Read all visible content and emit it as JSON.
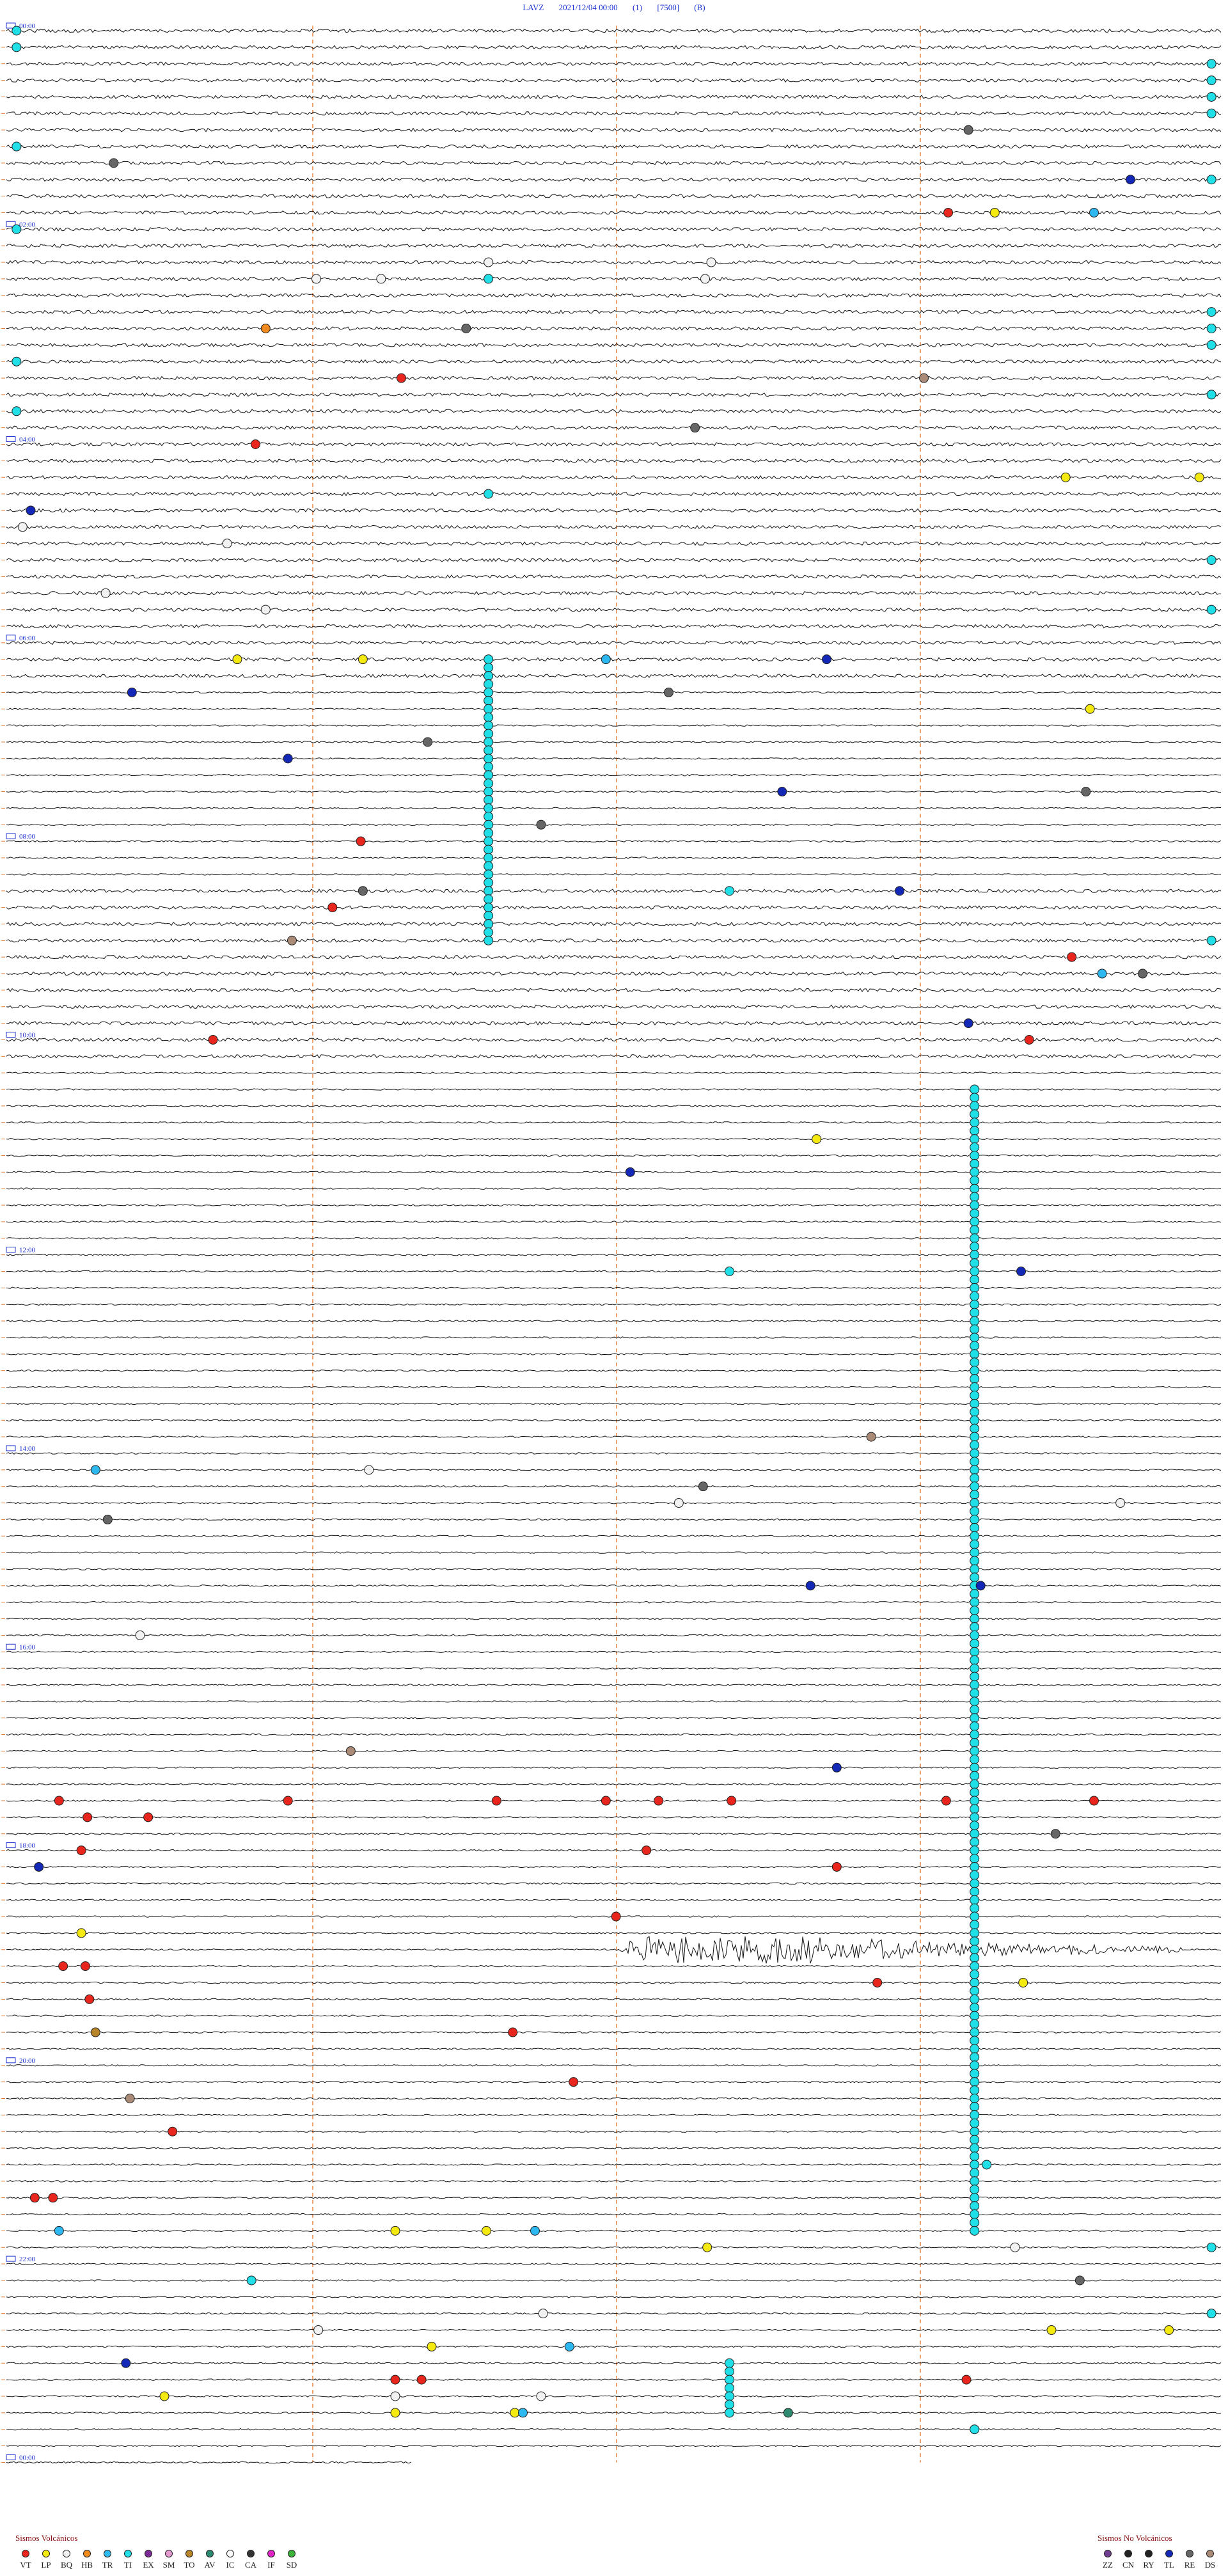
{
  "header": {
    "station": "LAVZ",
    "datetime": "2021/12/04 00:00",
    "component": "(1)",
    "gain": "[7500]",
    "flag": "(B)"
  },
  "chart_data": {
    "type": "helicorder",
    "lines_per_hour": 4,
    "hour_labels": [
      "00:00",
      "02:00",
      "04:00",
      "06:00",
      "08:00",
      "10:00",
      "12:00",
      "14:00",
      "16:00",
      "18:00",
      "20:00",
      "22:00",
      "00:00"
    ],
    "label_color": "#1a2fd0",
    "trace_color": "#111111",
    "minute_markers_color": "#e07a33",
    "event_types": {
      "VT": "#e8261e",
      "LP": "#f5ea10",
      "BQ": "#f2f2f2",
      "HB": "#f08a1e",
      "TR": "#2eb8f0",
      "TI": "#21dfe6",
      "EX": "#7b2a93",
      "SM": "#e59ad2",
      "TO": "#b9852b",
      "AV": "#2d8a70",
      "IC": "#ffffff",
      "CA": "#333333",
      "IF": "#e025c8",
      "SD": "#3bb23b",
      "ZZ": "#6e3d8f",
      "CN": "#222222",
      "RY": "#222222",
      "TL": "#1428b8",
      "RE": "#666666",
      "DS": "#a98b78"
    },
    "events": [
      {
        "type": "TI",
        "line": 0,
        "minute": 0.5
      },
      {
        "type": "TI",
        "line": 1,
        "minute": 0.5
      },
      {
        "type": "TI",
        "line": 2,
        "minute": 59.5
      },
      {
        "type": "TI",
        "line": 3,
        "minute": 59.5
      },
      {
        "type": "TI",
        "line": 4,
        "minute": 59.5
      },
      {
        "type": "TI",
        "line": 5,
        "minute": 59.5
      },
      {
        "type": "RE",
        "line": 6,
        "minute": 47.5
      },
      {
        "type": "TI",
        "line": 7,
        "minute": 0.5
      },
      {
        "type": "RE",
        "line": 8,
        "minute": 5.3
      },
      {
        "type": "TL",
        "line": 9,
        "minute": 55.5
      },
      {
        "type": "TI",
        "line": 9,
        "minute": 59.5
      },
      {
        "type": "VT",
        "line": 11,
        "minute": 46.5
      },
      {
        "type": "LP",
        "line": 11,
        "minute": 48.8
      },
      {
        "type": "TR",
        "line": 11,
        "minute": 53.7
      },
      {
        "type": "TI",
        "line": 12,
        "minute": 0.5
      },
      {
        "type": "BQ",
        "line": 14,
        "minute": 23.8
      },
      {
        "type": "BQ",
        "line": 14,
        "minute": 34.8
      },
      {
        "type": "TI",
        "line": 15,
        "minute": 23.8
      },
      {
        "type": "BQ",
        "line": 15,
        "minute": 15.3
      },
      {
        "type": "BQ",
        "line": 15,
        "minute": 18.5
      },
      {
        "type": "BQ",
        "line": 15,
        "minute": 34.5
      },
      {
        "type": "TI",
        "line": 17,
        "minute": 59.5
      },
      {
        "type": "TI",
        "line": 18,
        "minute": 59.5
      },
      {
        "type": "HB",
        "line": 18,
        "minute": 12.8
      },
      {
        "type": "RE",
        "line": 18,
        "minute": 22.7
      },
      {
        "type": "TI",
        "line": 19,
        "minute": 59.5
      },
      {
        "type": "TI",
        "line": 20,
        "minute": 0.5
      },
      {
        "type": "VT",
        "line": 21,
        "minute": 19.5
      },
      {
        "type": "DS",
        "line": 21,
        "minute": 45.3
      },
      {
        "type": "TI",
        "line": 22,
        "minute": 59.5
      },
      {
        "type": "TI",
        "line": 23,
        "minute": 0.5
      },
      {
        "type": "RE",
        "line": 24,
        "minute": 34.0
      },
      {
        "type": "VT",
        "line": 25,
        "minute": 12.3
      },
      {
        "type": "LP",
        "line": 27,
        "minute": 52.3
      },
      {
        "type": "LP",
        "line": 27,
        "minute": 58.9
      },
      {
        "type": "TI",
        "line": 28,
        "minute": 23.8
      },
      {
        "type": "TL",
        "line": 29,
        "minute": 1.2
      },
      {
        "type": "BQ",
        "line": 30,
        "minute": 0.8
      },
      {
        "type": "BQ",
        "line": 31,
        "minute": 10.9
      },
      {
        "type": "TI",
        "line": 32,
        "minute": 59.5
      },
      {
        "type": "BQ",
        "line": 34,
        "minute": 4.9
      },
      {
        "type": "BQ",
        "line": 35,
        "minute": 12.8
      },
      {
        "type": "TI",
        "line": 35,
        "minute": 59.5
      },
      {
        "type": "LP",
        "line": 38,
        "minute": 11.4
      },
      {
        "type": "LP",
        "line": 38,
        "minute": 17.6
      },
      {
        "type": "TR",
        "line": 38,
        "minute": 29.6
      },
      {
        "type": "TL",
        "line": 38,
        "minute": 40.5
      },
      {
        "type": "TL",
        "line": 40,
        "minute": 6.2
      },
      {
        "type": "RE",
        "line": 40,
        "minute": 32.7
      },
      {
        "type": "LP",
        "line": 41,
        "minute": 53.5
      },
      {
        "type": "TL",
        "line": 44,
        "minute": 13.9
      },
      {
        "type": "RE",
        "line": 43,
        "minute": 20.8
      },
      {
        "type": "TL",
        "line": 46,
        "minute": 38.3
      },
      {
        "type": "RE",
        "line": 46,
        "minute": 53.3
      },
      {
        "type": "RE",
        "line": 48,
        "minute": 26.4
      },
      {
        "type": "VT",
        "line": 49,
        "minute": 17.5
      },
      {
        "type": "TI",
        "line": 52,
        "minute": 35.7
      },
      {
        "type": "TL",
        "line": 52,
        "minute": 44.1
      },
      {
        "type": "RE",
        "line": 52,
        "minute": 17.6
      },
      {
        "type": "VT",
        "line": 53,
        "minute": 16.1
      },
      {
        "type": "DS",
        "line": 55,
        "minute": 14.1
      },
      {
        "type": "TI",
        "line": 55,
        "minute": 59.5
      },
      {
        "type": "VT",
        "line": 56,
        "minute": 52.6
      },
      {
        "type": "TR",
        "line": 57,
        "minute": 54.1
      },
      {
        "type": "RE",
        "line": 57,
        "minute": 56.1
      },
      {
        "type": "TL",
        "line": 60,
        "minute": 47.5
      },
      {
        "type": "VT",
        "line": 61,
        "minute": 50.5
      },
      {
        "type": "VT",
        "line": 61,
        "minute": 10.2
      },
      {
        "type": "LP",
        "line": 67,
        "minute": 40.0
      },
      {
        "type": "TL",
        "line": 69,
        "minute": 30.8
      },
      {
        "type": "TI",
        "line": 75,
        "minute": 35.7
      },
      {
        "type": "TL",
        "line": 75,
        "minute": 50.1
      },
      {
        "type": "DS",
        "line": 85,
        "minute": 42.7
      },
      {
        "type": "TR",
        "line": 87,
        "minute": 4.4
      },
      {
        "type": "BQ",
        "line": 87,
        "minute": 17.9
      },
      {
        "type": "RE",
        "line": 88,
        "minute": 34.4
      },
      {
        "type": "BQ",
        "line": 89,
        "minute": 33.2
      },
      {
        "type": "BQ",
        "line": 89,
        "minute": 55.0
      },
      {
        "type": "RE",
        "line": 90,
        "minute": 5.0
      },
      {
        "type": "TL",
        "line": 94,
        "minute": 39.7
      },
      {
        "type": "TL",
        "line": 94,
        "minute": 48.1
      },
      {
        "type": "BQ",
        "line": 97,
        "minute": 6.6
      },
      {
        "type": "DS",
        "line": 104,
        "minute": 17.0
      },
      {
        "type": "TL",
        "line": 105,
        "minute": 41.0
      },
      {
        "type": "VT",
        "line": 107,
        "minute": 2.6
      },
      {
        "type": "VT",
        "line": 107,
        "minute": 13.9
      },
      {
        "type": "VT",
        "line": 107,
        "minute": 24.2
      },
      {
        "type": "VT",
        "line": 107,
        "minute": 29.6
      },
      {
        "type": "VT",
        "line": 107,
        "minute": 32.2
      },
      {
        "type": "VT",
        "line": 107,
        "minute": 35.8
      },
      {
        "type": "VT",
        "line": 107,
        "minute": 46.4
      },
      {
        "type": "VT",
        "line": 107,
        "minute": 53.7
      },
      {
        "type": "VT",
        "line": 108,
        "minute": 4.0
      },
      {
        "type": "VT",
        "line": 108,
        "minute": 7.0
      },
      {
        "type": "RE",
        "line": 109,
        "minute": 51.8
      },
      {
        "type": "VT",
        "line": 110,
        "minute": 3.7
      },
      {
        "type": "VT",
        "line": 110,
        "minute": 31.6
      },
      {
        "type": "TL",
        "line": 111,
        "minute": 1.6
      },
      {
        "type": "VT",
        "line": 111,
        "minute": 41.0
      },
      {
        "type": "VT",
        "line": 114,
        "minute": 30.1
      },
      {
        "type": "LP",
        "line": 115,
        "minute": 3.7
      },
      {
        "type": "VT",
        "line": 117,
        "minute": 2.8
      },
      {
        "type": "VT",
        "line": 117,
        "minute": 3.9
      },
      {
        "type": "VT",
        "line": 118,
        "minute": 43.0
      },
      {
        "type": "LP",
        "line": 118,
        "minute": 50.2
      },
      {
        "type": "VT",
        "line": 119,
        "minute": 4.1
      },
      {
        "type": "TO",
        "line": 121,
        "minute": 4.4
      },
      {
        "type": "VT",
        "line": 121,
        "minute": 25.0
      },
      {
        "type": "VT",
        "line": 124,
        "minute": 28.0
      },
      {
        "type": "DS",
        "line": 125,
        "minute": 6.1
      },
      {
        "type": "VT",
        "line": 127,
        "minute": 8.2
      },
      {
        "type": "TI",
        "line": 129,
        "minute": 48.4
      },
      {
        "type": "VT",
        "line": 131,
        "minute": 1.4
      },
      {
        "type": "VT",
        "line": 131,
        "minute": 2.3
      },
      {
        "type": "TR",
        "line": 133,
        "minute": 2.6
      },
      {
        "type": "LP",
        "line": 133,
        "minute": 19.2
      },
      {
        "type": "LP",
        "line": 133,
        "minute": 23.7
      },
      {
        "type": "TR",
        "line": 133,
        "minute": 26.1
      },
      {
        "type": "LP",
        "line": 134,
        "minute": 34.6
      },
      {
        "type": "BQ",
        "line": 134,
        "minute": 49.8
      },
      {
        "type": "TI",
        "line": 134,
        "minute": 59.5
      },
      {
        "type": "RE",
        "line": 136,
        "minute": 53.0
      },
      {
        "type": "TI",
        "line": 136,
        "minute": 12.1
      },
      {
        "type": "TI",
        "line": 138,
        "minute": 59.5
      },
      {
        "type": "BQ",
        "line": 138,
        "minute": 26.5
      },
      {
        "type": "BQ",
        "line": 139,
        "minute": 15.4
      },
      {
        "type": "LP",
        "line": 139,
        "minute": 51.6
      },
      {
        "type": "LP",
        "line": 139,
        "minute": 57.4
      },
      {
        "type": "LP",
        "line": 140,
        "minute": 21.0
      },
      {
        "type": "TR",
        "line": 140,
        "minute": 27.8
      },
      {
        "type": "TL",
        "line": 141,
        "minute": 5.9
      },
      {
        "type": "VT",
        "line": 142,
        "minute": 19.2
      },
      {
        "type": "VT",
        "line": 142,
        "minute": 20.5
      },
      {
        "type": "VT",
        "line": 142,
        "minute": 47.4
      },
      {
        "type": "LP",
        "line": 143,
        "minute": 7.8
      },
      {
        "type": "BQ",
        "line": 143,
        "minute": 19.2
      },
      {
        "type": "BQ",
        "line": 143,
        "minute": 26.4
      },
      {
        "type": "LP",
        "line": 144,
        "minute": 19.2
      },
      {
        "type": "LP",
        "line": 144,
        "minute": 25.1
      },
      {
        "type": "TR",
        "line": 144,
        "minute": 25.5
      },
      {
        "type": "AV",
        "line": 144,
        "minute": 38.6
      },
      {
        "type": "TI",
        "line": 144,
        "minute": 35.7
      },
      {
        "type": "TI",
        "line": 145,
        "minute": 47.8
      }
    ],
    "swarm_columns": [
      {
        "type": "TI",
        "minute": 23.8,
        "from_line": 38,
        "to_line": 55
      },
      {
        "type": "TI",
        "minute": 47.8,
        "from_line": 64,
        "to_line": 133
      },
      {
        "type": "TI",
        "minute": 35.7,
        "from_line": 141,
        "to_line": 144
      }
    ],
    "big_event": {
      "line": 116,
      "minute_start": 30,
      "minute_end": 58,
      "amplitude": 22
    }
  },
  "legend": {
    "volcanic": {
      "title": "Sismos Volcánicos",
      "items": [
        {
          "code": "VT",
          "color": "#e8261e"
        },
        {
          "code": "LP",
          "color": "#f5ea10"
        },
        {
          "code": "BQ",
          "color": "#f2f2f2"
        },
        {
          "code": "HB",
          "color": "#f08a1e"
        },
        {
          "code": "TR",
          "color": "#2eb8f0"
        },
        {
          "code": "TI",
          "color": "#21dfe6"
        },
        {
          "code": "EX",
          "color": "#7b2a93"
        },
        {
          "code": "SM",
          "color": "#e59ad2"
        },
        {
          "code": "TO",
          "color": "#b9852b"
        },
        {
          "code": "AV",
          "color": "#2d8a70"
        },
        {
          "code": "IC",
          "color": "#ffffff"
        },
        {
          "code": "CA",
          "color": "#333333"
        },
        {
          "code": "IF",
          "color": "#e025c8"
        },
        {
          "code": "SD",
          "color": "#3bb23b"
        }
      ]
    },
    "non_volcanic": {
      "title": "Sismos No Volcánicos",
      "items": [
        {
          "code": "ZZ",
          "color": "#6e3d8f"
        },
        {
          "code": "CN",
          "color": "#222222"
        },
        {
          "code": "RY",
          "color": "#222222"
        },
        {
          "code": "TL",
          "color": "#1428b8"
        },
        {
          "code": "RE",
          "color": "#666666"
        },
        {
          "code": "DS",
          "color": "#a98b78"
        }
      ]
    }
  }
}
